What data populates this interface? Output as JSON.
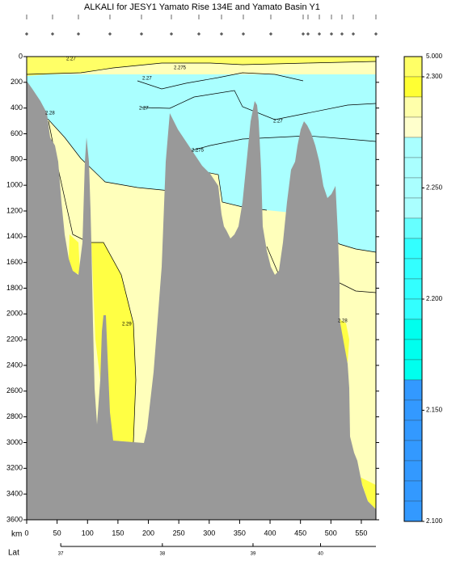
{
  "chart_data": {
    "type": "contour",
    "title": "ALKALI for JESY1 Yamato Rise 134E and Yamato Basin Y1",
    "x_label": "km",
    "xlim": [
      0,
      574
    ],
    "xticks": [
      0,
      50,
      100,
      150,
      200,
      250,
      300,
      350,
      400,
      450,
      500,
      550
    ],
    "ylim": [
      3600,
      0
    ],
    "yticks": [
      0,
      200,
      400,
      600,
      800,
      1000,
      1200,
      1400,
      1600,
      1800,
      2000,
      2200,
      2400,
      2600,
      2800,
      3000,
      3200,
      3400,
      3600
    ],
    "lat_axis": {
      "label": "Lat",
      "km": [
        56,
        223,
        372,
        483
      ],
      "ticks": [
        37,
        38,
        39,
        40
      ]
    },
    "annotations": [
      "2.27",
      "2.275",
      "2.27",
      "2.27",
      "2.28",
      "2.27",
      "2.275",
      "2.29",
      "2.28"
    ],
    "colorbar": {
      "lim": [
        2.1,
        2.3
      ],
      "ticks": [
        {
          "value": 2.3,
          "label": "2.300"
        },
        {
          "value": 2.25,
          "label": "2.250"
        },
        {
          "value": 2.2,
          "label": "2.200"
        },
        {
          "value": 2.15,
          "label": "2.150"
        },
        {
          "value": 2.1,
          "label": "2.100"
        }
      ],
      "top_label": {
        "value": 5,
        "label": "5.000"
      },
      "colors": [
        "#ffff66",
        "#ffff33",
        "#ffffaa",
        "#ffffcc",
        "#aaffff",
        "#aaffff",
        "#aaffff",
        "#aaffff",
        "#66ffff",
        "#33ffff",
        "#33ffff",
        "#33ffff",
        "#33ffff",
        "#00ffee",
        "#00ffee",
        "#00ffee",
        "#3399ff",
        "#3399ff",
        "#3399ff",
        "#3399ff",
        "#3399ff",
        "#3399ff",
        "#3399ff"
      ]
    }
  }
}
